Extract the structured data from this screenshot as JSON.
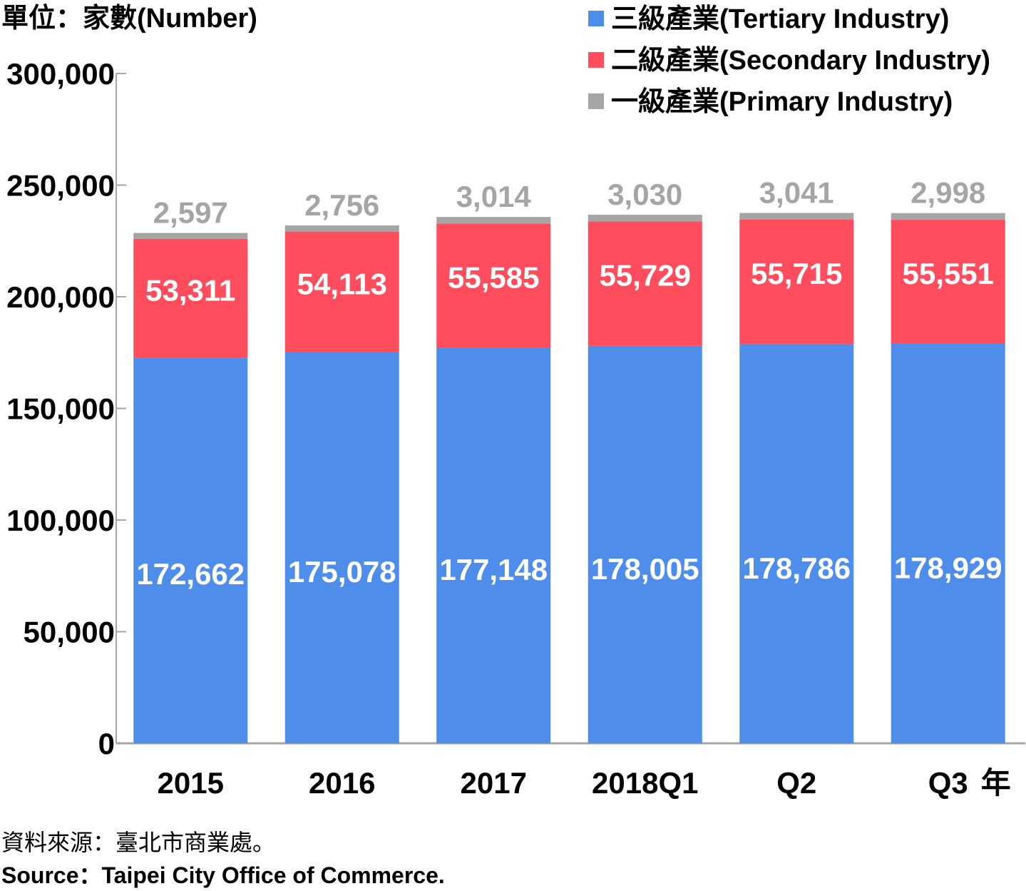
{
  "chart_data": {
    "type": "bar",
    "stacked": true,
    "unit_label": "單位：家數(Number)",
    "x_suffix": "年",
    "categories": [
      "2015",
      "2016",
      "2017",
      "2018Q1",
      "Q2",
      "Q3"
    ],
    "y_ticks": [
      "0",
      "50,000",
      "100,000",
      "150,000",
      "200,000",
      "250,000",
      "300,000"
    ],
    "ylim": [
      0,
      300000
    ],
    "grid": false,
    "legend_position": "top-right",
    "series": [
      {
        "name": "三級產業(Tertiary Industry)",
        "color": "#4f8deb",
        "label_color": "#ffffff",
        "values": [
          172662,
          175078,
          177148,
          178005,
          178786,
          178929
        ],
        "labels": [
          "172,662",
          "175,078",
          "177,148",
          "178,005",
          "178,786",
          "178,929"
        ]
      },
      {
        "name": "二級產業(Secondary Industry)",
        "color": "#ff4d5e",
        "label_color": "#ffffff",
        "values": [
          53311,
          54113,
          55585,
          55729,
          55715,
          55551
        ],
        "labels": [
          "53,311",
          "54,113",
          "55,585",
          "55,729",
          "55,715",
          "55,551"
        ]
      },
      {
        "name": "一級產業(Primary Industry)",
        "color": "#a5a5a5",
        "label_color": "#a5a5a5",
        "values": [
          2597,
          2756,
          3014,
          3030,
          3041,
          2998
        ],
        "labels": [
          "2,597",
          "2,756",
          "3,014",
          "3,030",
          "3,041",
          "2,998"
        ]
      }
    ],
    "legend_order": [
      0,
      1,
      2
    ],
    "axis_color": "#a6a6a6"
  },
  "source": {
    "zh": "資料來源：臺北市商業處。",
    "en": "Source：Taipei City Office of Commerce."
  }
}
